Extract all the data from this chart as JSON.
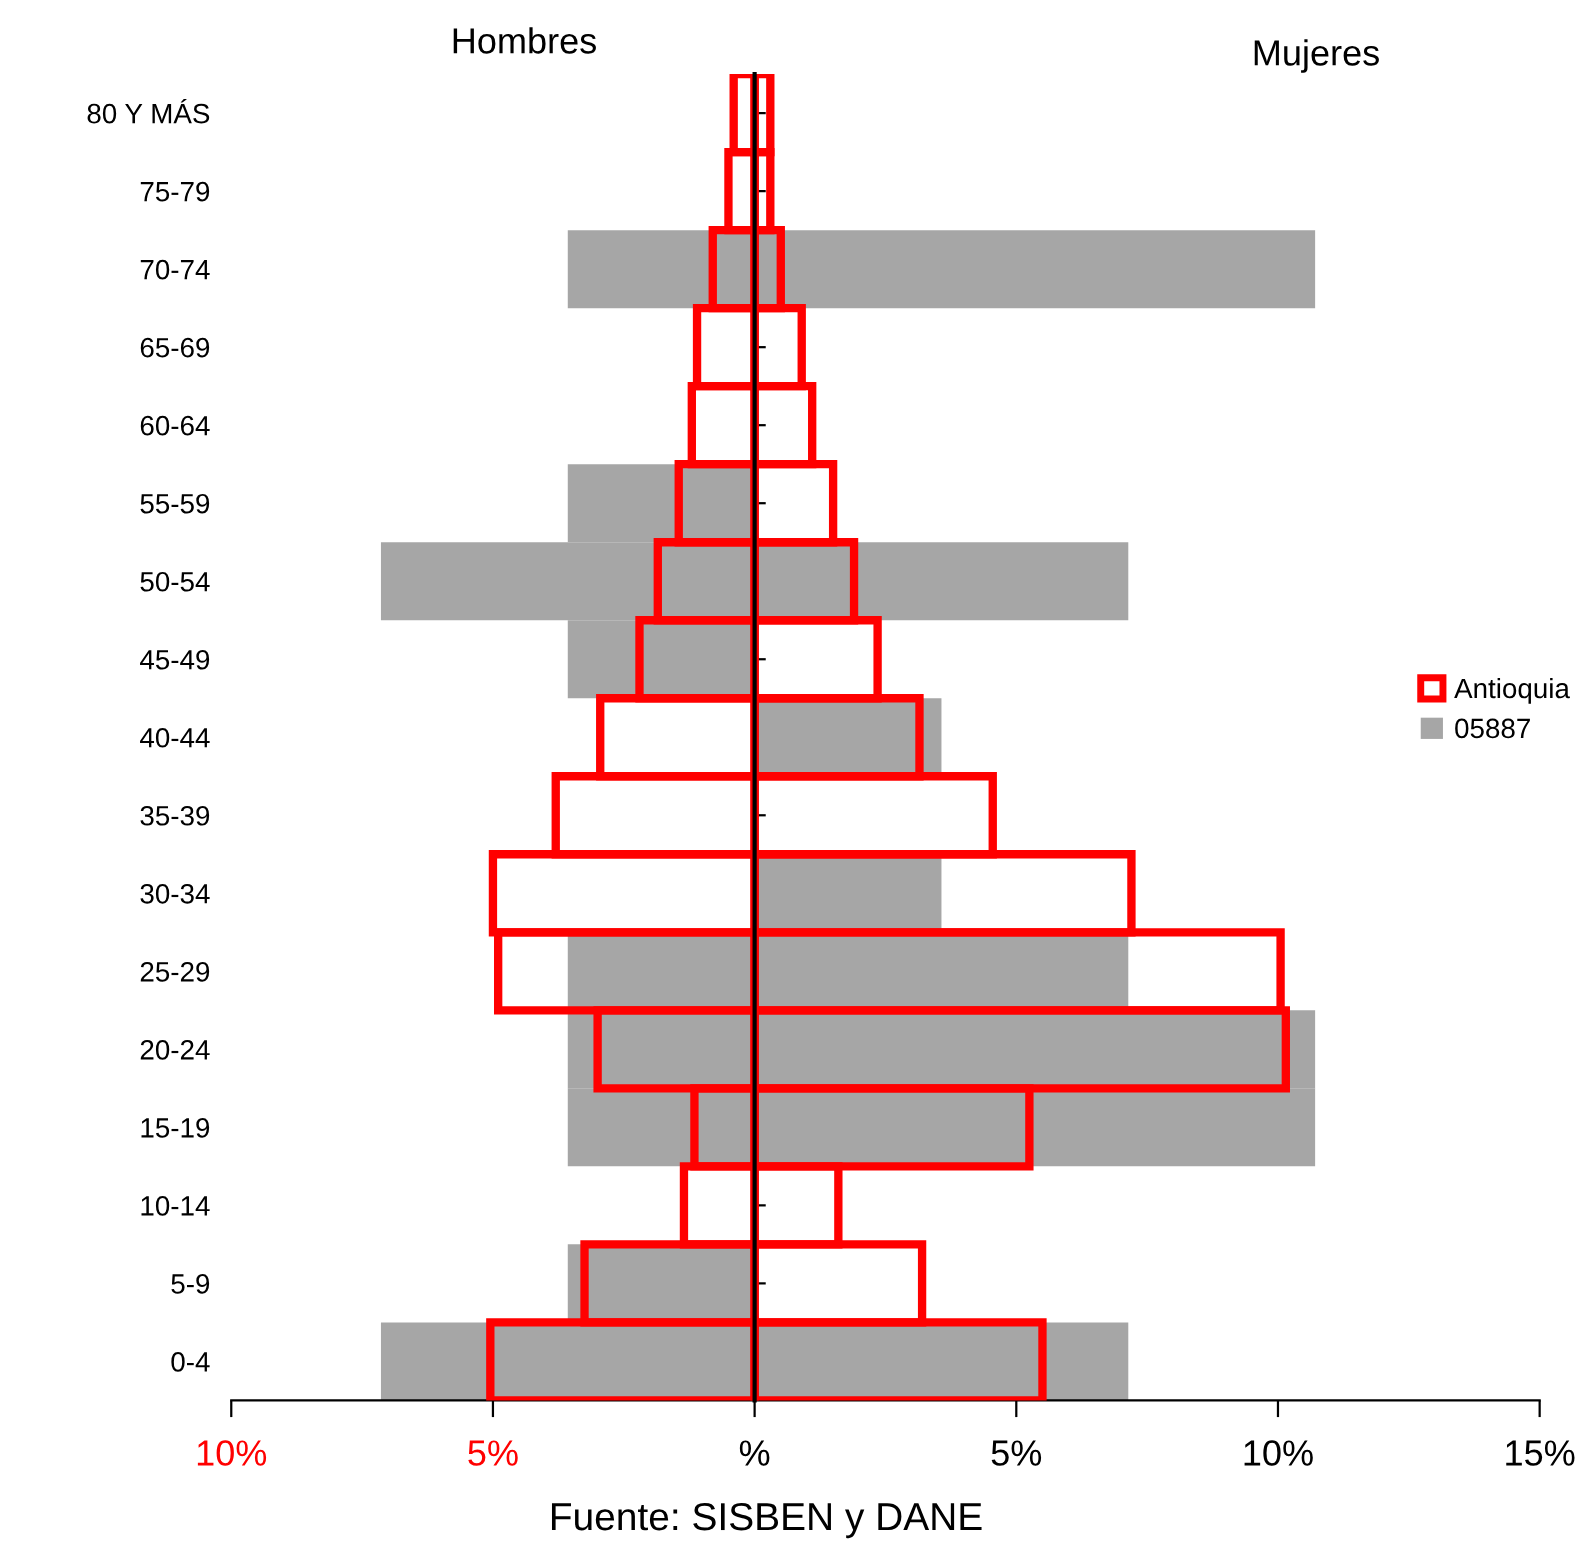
{
  "chart_data": {
    "type": "bar",
    "orientation": "horizontal",
    "categories": [
      "80 Y MÁS",
      "75-79",
      "70-74",
      "65-69",
      "60-64",
      "55-59",
      "50-54",
      "45-49",
      "40-44",
      "35-39",
      "30-34",
      "25-29",
      "20-24",
      "15-19",
      "10-14",
      "5-9",
      "0-4"
    ],
    "series": [
      {
        "name": "Antioquia",
        "color": "#ff0000",
        "line_style": "solid",
        "values": [
          -0.4,
          -0.5,
          -0.8,
          -1.1,
          -1.2,
          -1.45,
          -1.85,
          -2.2,
          -2.95,
          -3.8,
          -5.0,
          -4.9,
          -3.0,
          -1.15,
          -1.35,
          -3.25,
          -5.05
        ]
      },
      {
        "name": null,
        "color": "#ff0000",
        "line_style": "solid",
        "values": [
          0.3,
          0.3,
          0.5,
          0.9,
          1.1,
          1.5,
          1.9,
          2.35,
          3.15,
          4.55,
          7.2,
          10.05,
          10.15,
          5.25,
          1.6,
          3.2,
          5.5
        ]
      },
      {
        "name": "05887",
        "color": "#a6a6a6",
        "values": [
          0,
          0,
          -3.57,
          0,
          0,
          -3.57,
          -7.14,
          -3.57,
          0,
          0,
          0,
          -3.57,
          -3.57,
          -3.57,
          0,
          -3.57,
          -7.14
        ]
      },
      {
        "name": null,
        "color": "#a6a6a6",
        "values": [
          0,
          0,
          10.71,
          0,
          0,
          0,
          7.14,
          0,
          3.57,
          0,
          3.57,
          7.14,
          10.71,
          10.71,
          0,
          0,
          7.14
        ]
      }
    ],
    "xlim": [
      -10,
      15
    ],
    "xticks": [
      {
        "value": -10,
        "label": "10%"
      },
      {
        "value": -5,
        "label": "5%"
      },
      {
        "value": 0,
        "label": "%"
      },
      {
        "value": 5,
        "label": "5%"
      },
      {
        "value": 10,
        "label": "10%"
      },
      {
        "value": 15,
        "label": "15%"
      }
    ],
    "annotations": [
      "Hombres",
      "Mujeres",
      "Fuente: SISBEN y DANE"
    ],
    "legend": "right"
  }
}
